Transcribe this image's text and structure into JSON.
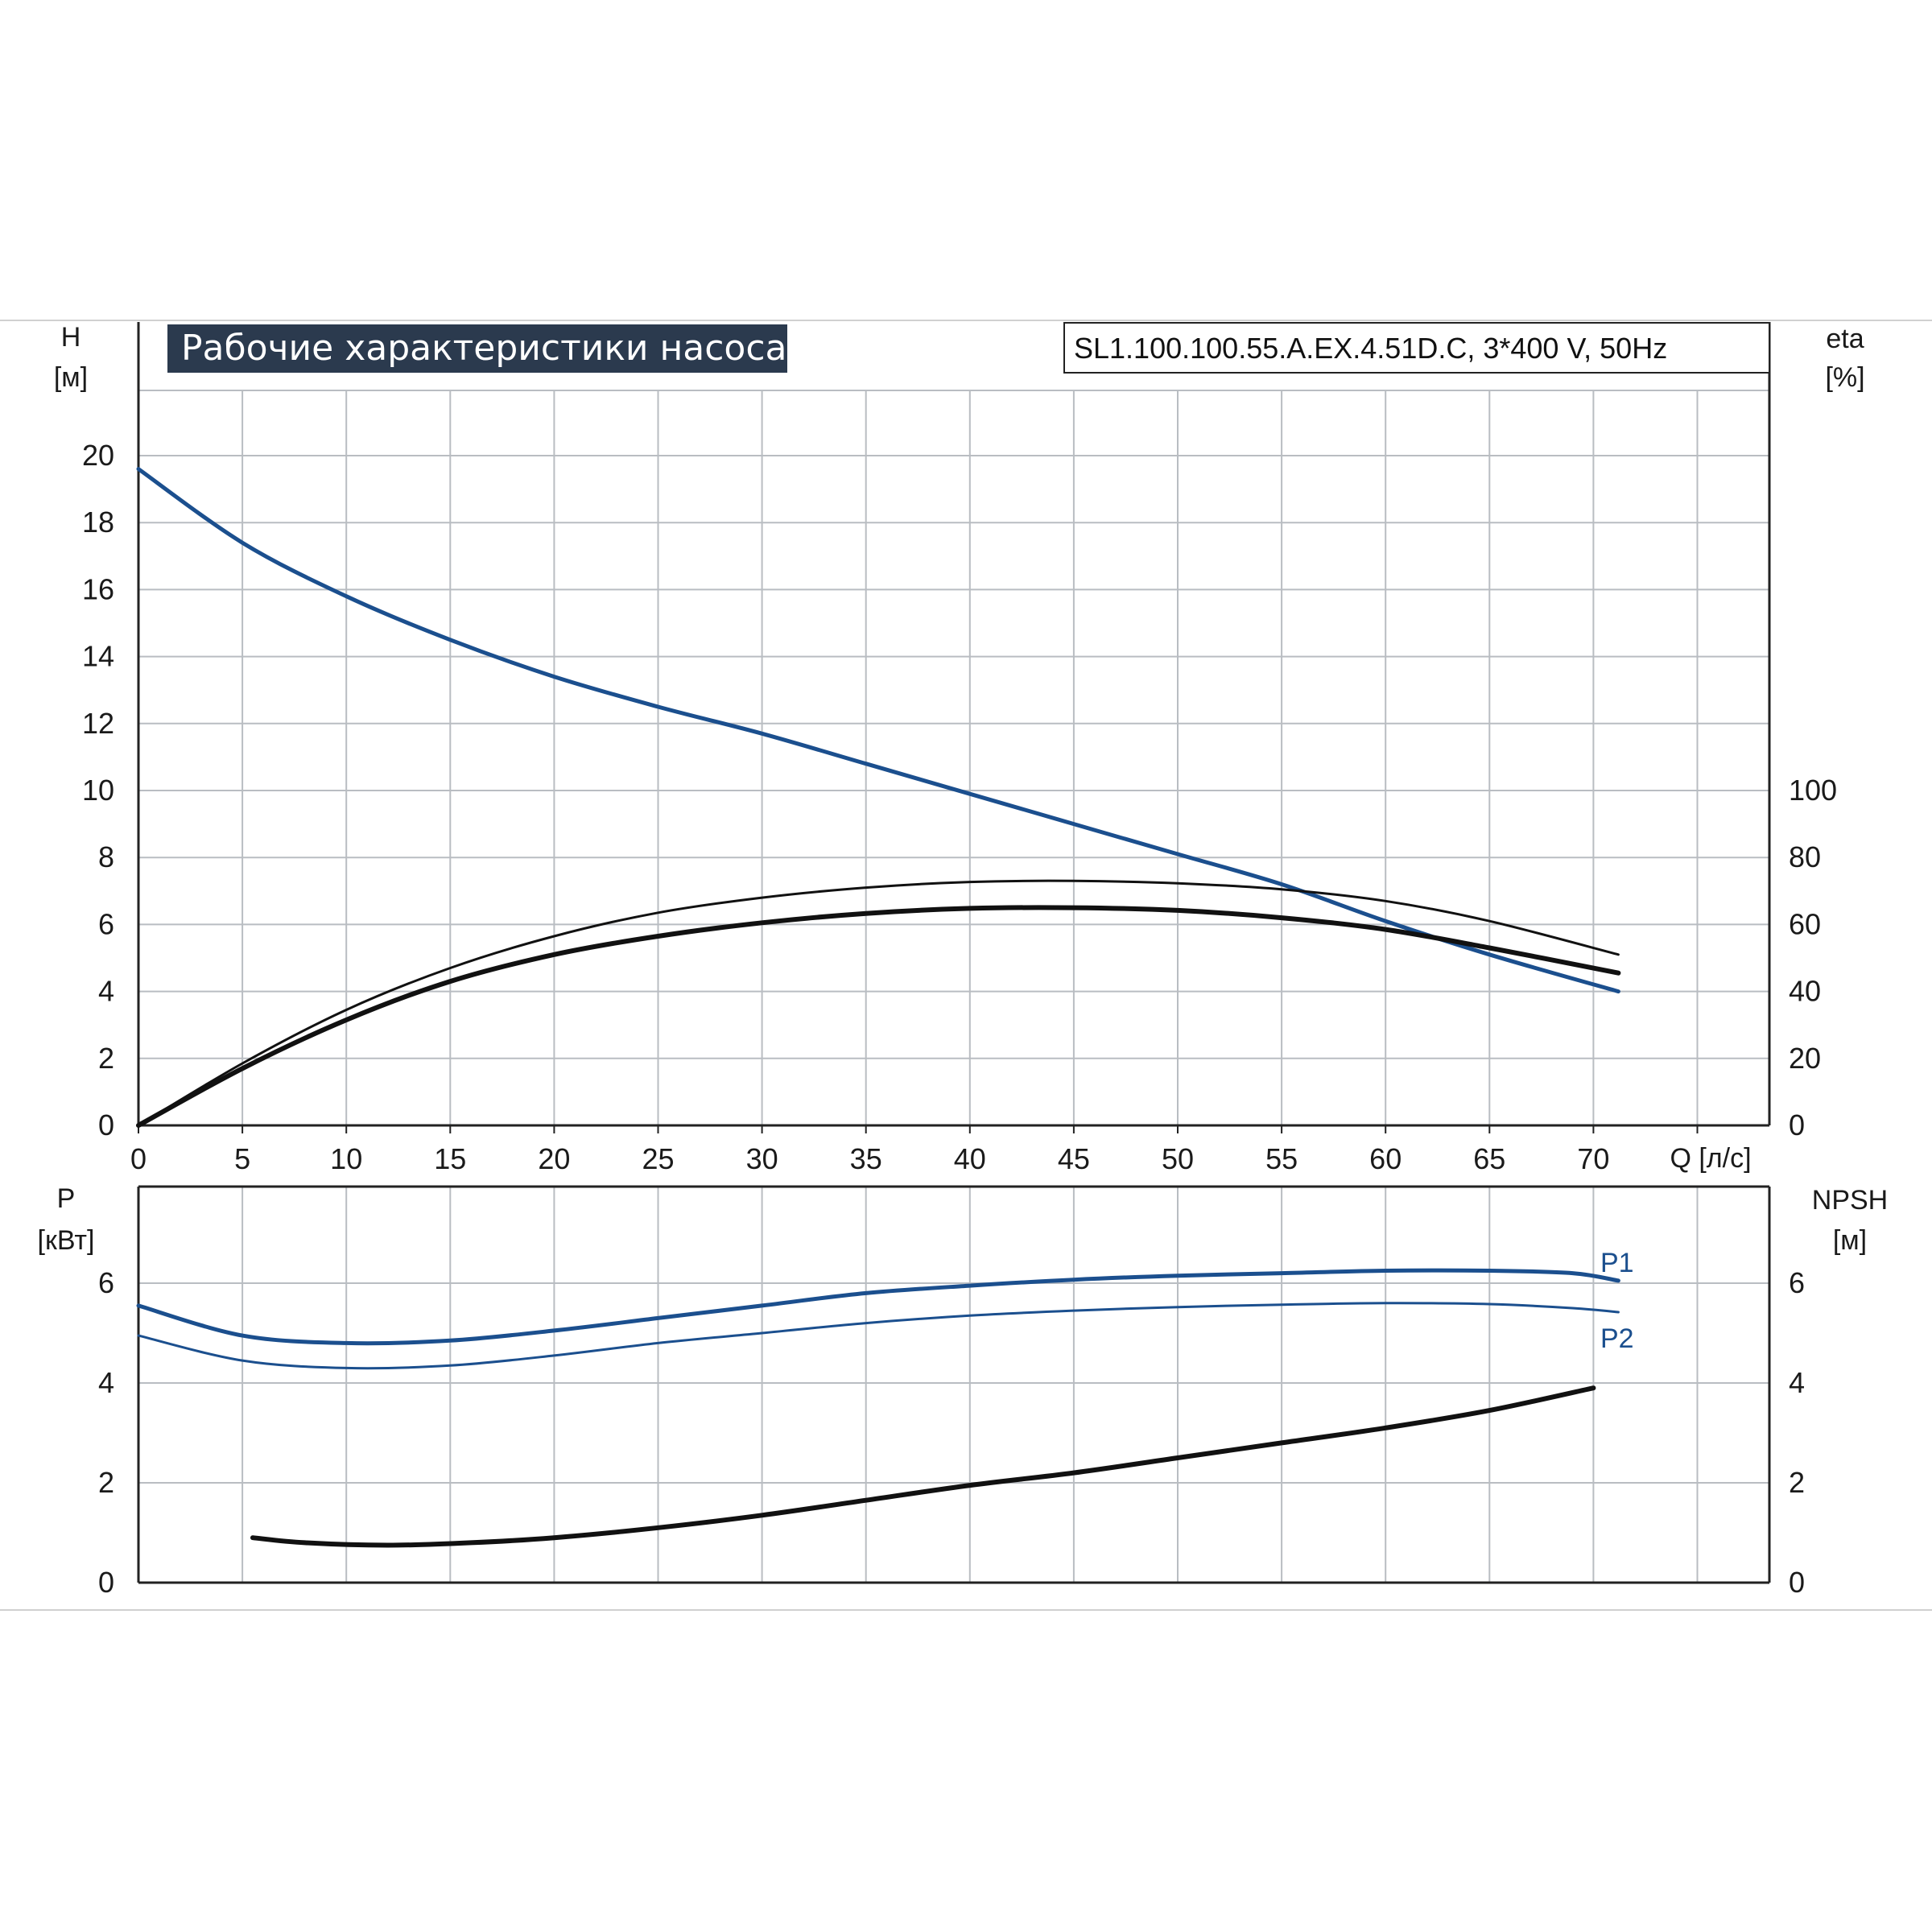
{
  "title": "Рабочие характеристики насоса",
  "model": "SL1.100.100.55.A.EX.4.51D.C, 3*400 V, 50Hz",
  "colors": {
    "blue": "#1b4f8e",
    "black": "#111111",
    "grid": "#b9bdc2",
    "title_bg": "#2b3a4e"
  },
  "chart_data": [
    {
      "type": "line",
      "name": "top",
      "x_axis": {
        "label": "Q [л/с]",
        "range": [
          0,
          78
        ],
        "ticks": [
          "0",
          "5",
          "10",
          "15",
          "20",
          "25",
          "30",
          "35",
          "40",
          "45",
          "50",
          "55",
          "60",
          "65",
          "70"
        ]
      },
      "y_left": {
        "label_line1": "H",
        "label_line2": "[м]",
        "range": [
          0,
          20
        ],
        "ticks": [
          "0",
          "2",
          "4",
          "6",
          "8",
          "10",
          "12",
          "14",
          "16",
          "18",
          "20"
        ]
      },
      "y_right": {
        "label_line1": "eta",
        "label_line2": "[%]",
        "range": [
          0,
          100
        ],
        "ticks": [
          "0",
          "20",
          "40",
          "60",
          "80",
          "100"
        ]
      },
      "grid": true,
      "series": [
        {
          "axis": "left",
          "color": "blue",
          "stroke": 5,
          "points": [
            [
              0,
              19.6
            ],
            [
              5,
              17.4
            ],
            [
              10,
              15.8
            ],
            [
              15,
              14.5
            ],
            [
              20,
              13.4
            ],
            [
              25,
              12.5
            ],
            [
              30,
              11.7
            ],
            [
              35,
              10.8
            ],
            [
              40,
              9.9
            ],
            [
              45,
              9.0
            ],
            [
              50,
              8.1
            ],
            [
              55,
              7.2
            ],
            [
              60,
              6.1
            ],
            [
              65,
              5.1
            ],
            [
              71.2,
              4.0
            ]
          ]
        },
        {
          "axis": "right",
          "color": "black",
          "stroke": 3,
          "points": [
            [
              0,
              0
            ],
            [
              5,
              18.5
            ],
            [
              10,
              34.5
            ],
            [
              15,
              47
            ],
            [
              20,
              56.5
            ],
            [
              25,
              63.5
            ],
            [
              30,
              68
            ],
            [
              35,
              71
            ],
            [
              40,
              72.7
            ],
            [
              45,
              73
            ],
            [
              50,
              72.3
            ],
            [
              55,
              70.5
            ],
            [
              60,
              67
            ],
            [
              65,
              61
            ],
            [
              71.2,
              51
            ]
          ]
        },
        {
          "axis": "right",
          "color": "black",
          "stroke": 6,
          "points": [
            [
              0,
              0
            ],
            [
              5,
              17
            ],
            [
              10,
              31.5
            ],
            [
              15,
              43
            ],
            [
              20,
              51
            ],
            [
              25,
              56.5
            ],
            [
              30,
              60.5
            ],
            [
              35,
              63.3
            ],
            [
              40,
              64.8
            ],
            [
              45,
              65
            ],
            [
              50,
              64.2
            ],
            [
              55,
              62
            ],
            [
              60,
              58.5
            ],
            [
              65,
              53
            ],
            [
              71.2,
              45.5
            ]
          ]
        }
      ]
    },
    {
      "type": "line",
      "name": "bottom",
      "x_axis": {
        "range": [
          0,
          78
        ]
      },
      "y_left": {
        "label_line1": "P",
        "label_line2": "[кВт]",
        "range": [
          0,
          8
        ],
        "ticks": [
          "0",
          "2",
          "4",
          "6"
        ]
      },
      "y_right": {
        "label_line1": "NPSH",
        "label_line2": "[м]",
        "range": [
          0,
          8
        ],
        "ticks": [
          "0",
          "2",
          "4",
          "6"
        ]
      },
      "grid": true,
      "series": [
        {
          "name": "P1",
          "axis": "left",
          "color": "blue",
          "stroke": 5,
          "points": [
            [
              0,
              5.55
            ],
            [
              5,
              4.95
            ],
            [
              10,
              4.8
            ],
            [
              15,
              4.85
            ],
            [
              20,
              5.05
            ],
            [
              25,
              5.3
            ],
            [
              30,
              5.55
            ],
            [
              35,
              5.8
            ],
            [
              40,
              5.95
            ],
            [
              45,
              6.07
            ],
            [
              50,
              6.15
            ],
            [
              55,
              6.2
            ],
            [
              60,
              6.25
            ],
            [
              65,
              6.25
            ],
            [
              69,
              6.2
            ],
            [
              71.2,
              6.05
            ]
          ]
        },
        {
          "name": "P2",
          "axis": "left",
          "color": "blue",
          "stroke": 3,
          "points": [
            [
              0,
              4.95
            ],
            [
              5,
              4.45
            ],
            [
              10,
              4.3
            ],
            [
              15,
              4.35
            ],
            [
              20,
              4.55
            ],
            [
              25,
              4.8
            ],
            [
              30,
              5.0
            ],
            [
              35,
              5.2
            ],
            [
              40,
              5.35
            ],
            [
              45,
              5.45
            ],
            [
              50,
              5.52
            ],
            [
              55,
              5.57
            ],
            [
              60,
              5.6
            ],
            [
              65,
              5.58
            ],
            [
              69,
              5.5
            ],
            [
              71.2,
              5.42
            ]
          ]
        },
        {
          "name": "",
          "axis": "right",
          "color": "black",
          "stroke": 6,
          "points": [
            [
              5.5,
              0.9
            ],
            [
              8,
              0.8
            ],
            [
              12,
              0.75
            ],
            [
              16,
              0.8
            ],
            [
              20,
              0.9
            ],
            [
              25,
              1.1
            ],
            [
              30,
              1.35
            ],
            [
              35,
              1.65
            ],
            [
              40,
              1.95
            ],
            [
              45,
              2.2
            ],
            [
              50,
              2.5
            ],
            [
              55,
              2.8
            ],
            [
              60,
              3.1
            ],
            [
              65,
              3.45
            ],
            [
              70,
              3.9
            ]
          ]
        }
      ]
    }
  ]
}
